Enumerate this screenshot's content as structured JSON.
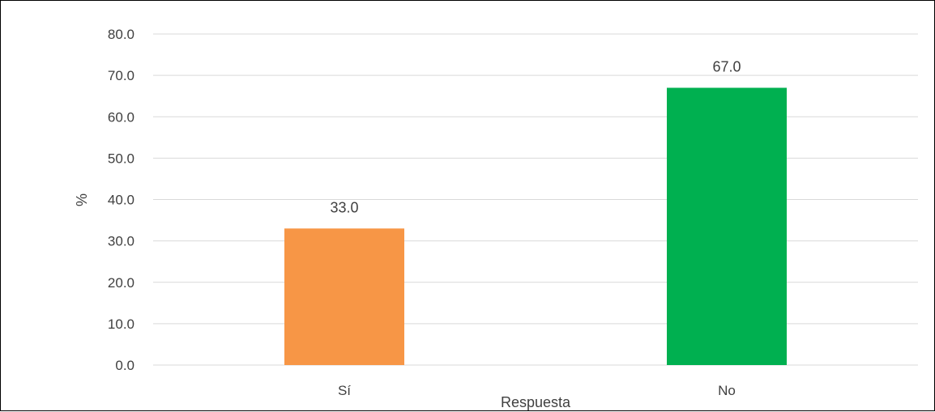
{
  "chart_data": {
    "type": "bar",
    "categories": [
      "Sí",
      "No"
    ],
    "values": [
      33.0,
      67.0
    ],
    "value_labels": [
      "33.0",
      "67.0"
    ],
    "bar_colors": [
      "#F79646",
      "#00B050"
    ],
    "xlabel": "Respuesta",
    "ylabel": "%",
    "ylim": [
      0,
      80
    ],
    "yticks": [
      "0.0",
      "10.0",
      "20.0",
      "30.0",
      "40.0",
      "50.0",
      "60.0",
      "70.0",
      "80.0"
    ],
    "grid": true,
    "gridline_color": "#D9D9D9",
    "legend": "none"
  }
}
